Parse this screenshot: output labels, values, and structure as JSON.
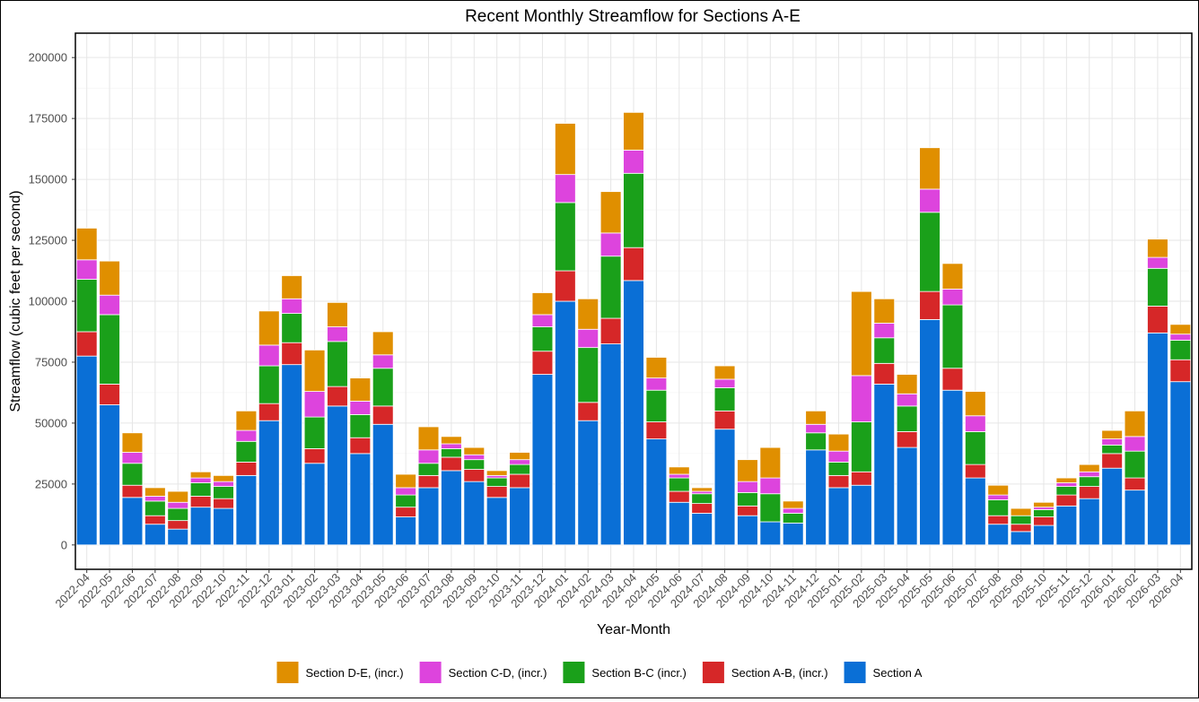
{
  "chart_data": {
    "type": "bar",
    "stacked": true,
    "title": "Recent Monthly Streamflow for Sections A-E",
    "xlabel": "Year-Month",
    "ylabel": "Streamflow (cubic feet per second)",
    "ylim": [
      -10000,
      210000
    ],
    "yticks": [
      0,
      25000,
      50000,
      75000,
      100000,
      125000,
      150000,
      175000,
      200000
    ],
    "grid": true,
    "legend_position": "bottom",
    "categories": [
      "2022-04",
      "2022-05",
      "2022-06",
      "2022-07",
      "2022-08",
      "2022-09",
      "2022-10",
      "2022-11",
      "2022-12",
      "2023-01",
      "2023-02",
      "2023-03",
      "2023-04",
      "2023-05",
      "2023-06",
      "2023-07",
      "2023-08",
      "2023-09",
      "2023-10",
      "2023-11",
      "2023-12",
      "2024-01",
      "2024-02",
      "2024-03",
      "2024-04",
      "2024-05",
      "2024-06",
      "2024-07",
      "2024-08",
      "2024-09",
      "2024-10",
      "2024-11",
      "2024-12",
      "2025-01",
      "2025-02",
      "2025-03",
      "2025-04",
      "2025-05",
      "2025-06",
      "2025-07",
      "2025-08",
      "2025-09",
      "2025-10",
      "2025-11",
      "2025-12",
      "2026-01",
      "2026-02",
      "2026-03",
      "2026-04"
    ],
    "series": [
      {
        "name": "Section A",
        "color": "#0a6fd6",
        "values": [
          77500,
          57500,
          19500,
          8500,
          6500,
          15500,
          15000,
          28500,
          51000,
          74000,
          33500,
          57000,
          37500,
          49500,
          11500,
          23500,
          30500,
          26000,
          19500,
          23500,
          70000,
          100000,
          51000,
          82500,
          108500,
          43500,
          17500,
          13000,
          47500,
          12000,
          9500,
          9000,
          39000,
          23500,
          24500,
          66000,
          40000,
          92500,
          63500,
          27500,
          8500,
          5500,
          8000,
          16000,
          19000,
          31500,
          22500,
          87000,
          67000
        ]
      },
      {
        "name": "Section A-B, (incr.)",
        "color": "#d62728",
        "values": [
          10000,
          8500,
          5000,
          3500,
          3500,
          4500,
          4000,
          5500,
          7000,
          9000,
          6000,
          8000,
          6500,
          7500,
          4000,
          5000,
          5500,
          5000,
          4500,
          5500,
          9500,
          12500,
          7500,
          10500,
          13500,
          7000,
          4500,
          4000,
          7500,
          4000,
          0,
          0,
          0,
          5000,
          5500,
          8500,
          6500,
          11500,
          9000,
          5500,
          3500,
          3000,
          3500,
          4500,
          5000,
          6000,
          5000,
          11000,
          9000
        ]
      },
      {
        "name": "Section B-C (incr.)",
        "color": "#1aa01a",
        "values": [
          21500,
          28500,
          9000,
          6000,
          5000,
          5500,
          5000,
          8500,
          15500,
          12000,
          13000,
          18500,
          9500,
          15500,
          5000,
          5000,
          3500,
          4000,
          3500,
          4000,
          10000,
          28000,
          22500,
          25500,
          30500,
          13000,
          5500,
          4000,
          9500,
          5500,
          11500,
          4000,
          7000,
          5500,
          20500,
          10500,
          10500,
          32500,
          26000,
          13500,
          6500,
          3500,
          3000,
          3500,
          4000,
          3500,
          11000,
          15500,
          8000
        ]
      },
      {
        "name": "Section C-D, (incr.)",
        "color": "#dd44dd",
        "values": [
          8000,
          8000,
          4500,
          2000,
          2500,
          2000,
          2000,
          4500,
          8500,
          6000,
          10500,
          6000,
          5500,
          5500,
          3000,
          5500,
          2000,
          2000,
          1000,
          2000,
          5000,
          11500,
          7500,
          9500,
          9500,
          5000,
          1500,
          1000,
          3500,
          4500,
          6500,
          2000,
          3500,
          4500,
          19000,
          6000,
          5000,
          9500,
          6500,
          6500,
          2000,
          0,
          1000,
          1500,
          2000,
          2500,
          6000,
          4500,
          2500
        ]
      },
      {
        "name": "Section D-E, (incr.)",
        "color": "#e08f00",
        "values": [
          13000,
          14000,
          8000,
          3500,
          4500,
          2500,
          2500,
          8000,
          14000,
          9500,
          17000,
          10000,
          9500,
          9500,
          5500,
          9500,
          3000,
          3000,
          2000,
          3000,
          9000,
          21000,
          12500,
          17000,
          15500,
          8500,
          3000,
          1500,
          5500,
          9000,
          12500,
          3000,
          5500,
          7000,
          34500,
          10000,
          8000,
          17000,
          10500,
          10000,
          4000,
          3000,
          2000,
          2000,
          3000,
          3500,
          10500,
          7500,
          4000
        ]
      }
    ],
    "legend_order": [
      "Section D-E, (incr.)",
      "Section C-D, (incr.)",
      "Section B-C (incr.)",
      "Section A-B, (incr.)",
      "Section A"
    ]
  }
}
